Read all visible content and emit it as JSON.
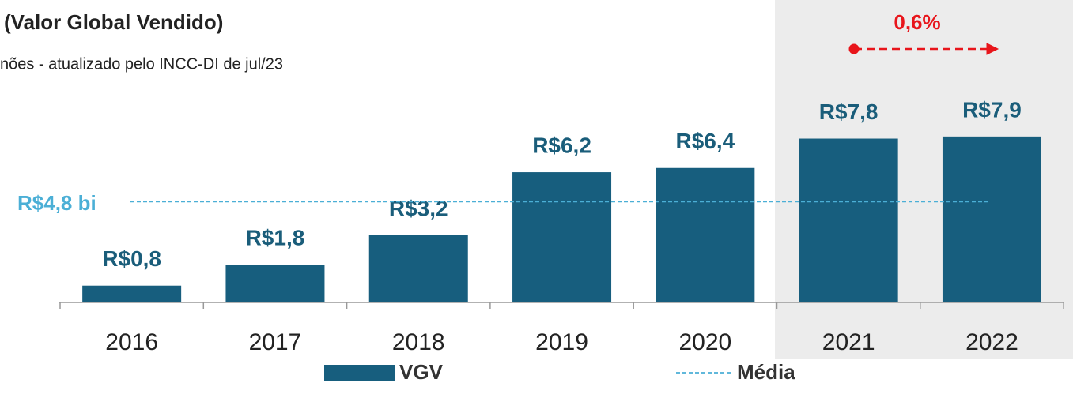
{
  "chart_data": {
    "type": "bar",
    "title": "(Valor Global Vendido)",
    "subtitle": "nões - atualizado pelo INCC-DI de jul/23",
    "categories": [
      "2016",
      "2017",
      "2018",
      "2019",
      "2020",
      "2021",
      "2022"
    ],
    "series": [
      {
        "name": "VGV",
        "color": "#175e7e",
        "values": [
          0.8,
          1.8,
          3.2,
          6.2,
          6.4,
          7.8,
          7.9
        ],
        "value_labels": [
          "R$0,8",
          "R$1,8",
          "R$3,2",
          "R$6,2",
          "R$6,4",
          "R$7,8",
          "R$7,9"
        ]
      }
    ],
    "average": {
      "name": "Média",
      "value": 4.8,
      "label": "R$4,8 bi",
      "color": "#4bafd6"
    },
    "annotation": {
      "text": "0,6%",
      "color": "#e8151b"
    }
  }
}
